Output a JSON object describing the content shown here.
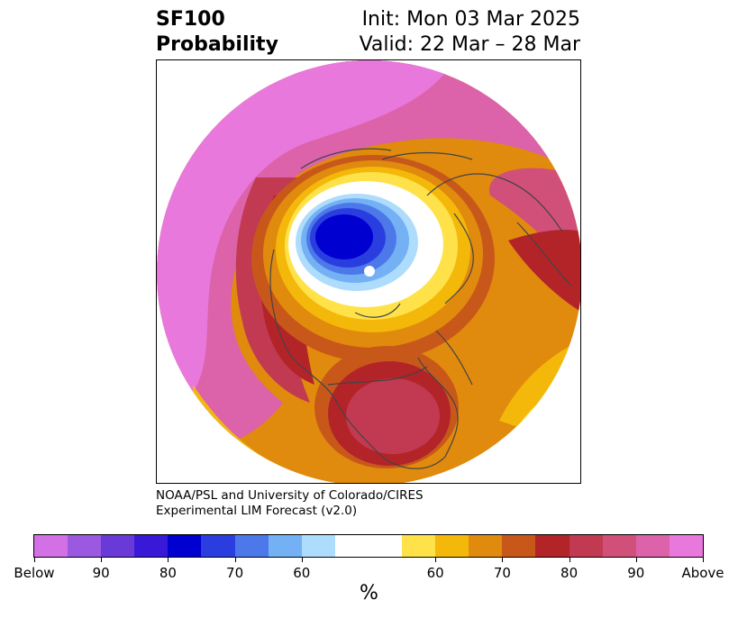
{
  "title": {
    "variable": "SF100",
    "kind": "Probability",
    "init": "Init: Mon 03 Mar 2025",
    "valid": "Valid: 22 Mar – 28 Mar"
  },
  "credit": {
    "line1": "NOAA/PSL and University of Colorado/CIRES",
    "line2": "Experimental LIM Forecast (v2.0)"
  },
  "map": {
    "projection": "north-polar-stereographic",
    "land_outline_color": "#444444"
  },
  "colorbar": {
    "unit": "%",
    "colors": [
      "#d470e6",
      "#9b58e0",
      "#6a3ad8",
      "#3a18d8",
      "#0000d0",
      "#2a3ee0",
      "#4d78ea",
      "#74b0f4",
      "#aedcfc",
      "#ffffff",
      "#ffffff",
      "#ffe24a",
      "#f4b80a",
      "#e08a0e",
      "#c8581a",
      "#b22428",
      "#c23a52",
      "#d0507a",
      "#dc62aa",
      "#e878dc"
    ],
    "tick_labels": [
      "Below",
      "90",
      "80",
      "70",
      "60",
      "60",
      "70",
      "80",
      "90",
      "Above"
    ]
  }
}
